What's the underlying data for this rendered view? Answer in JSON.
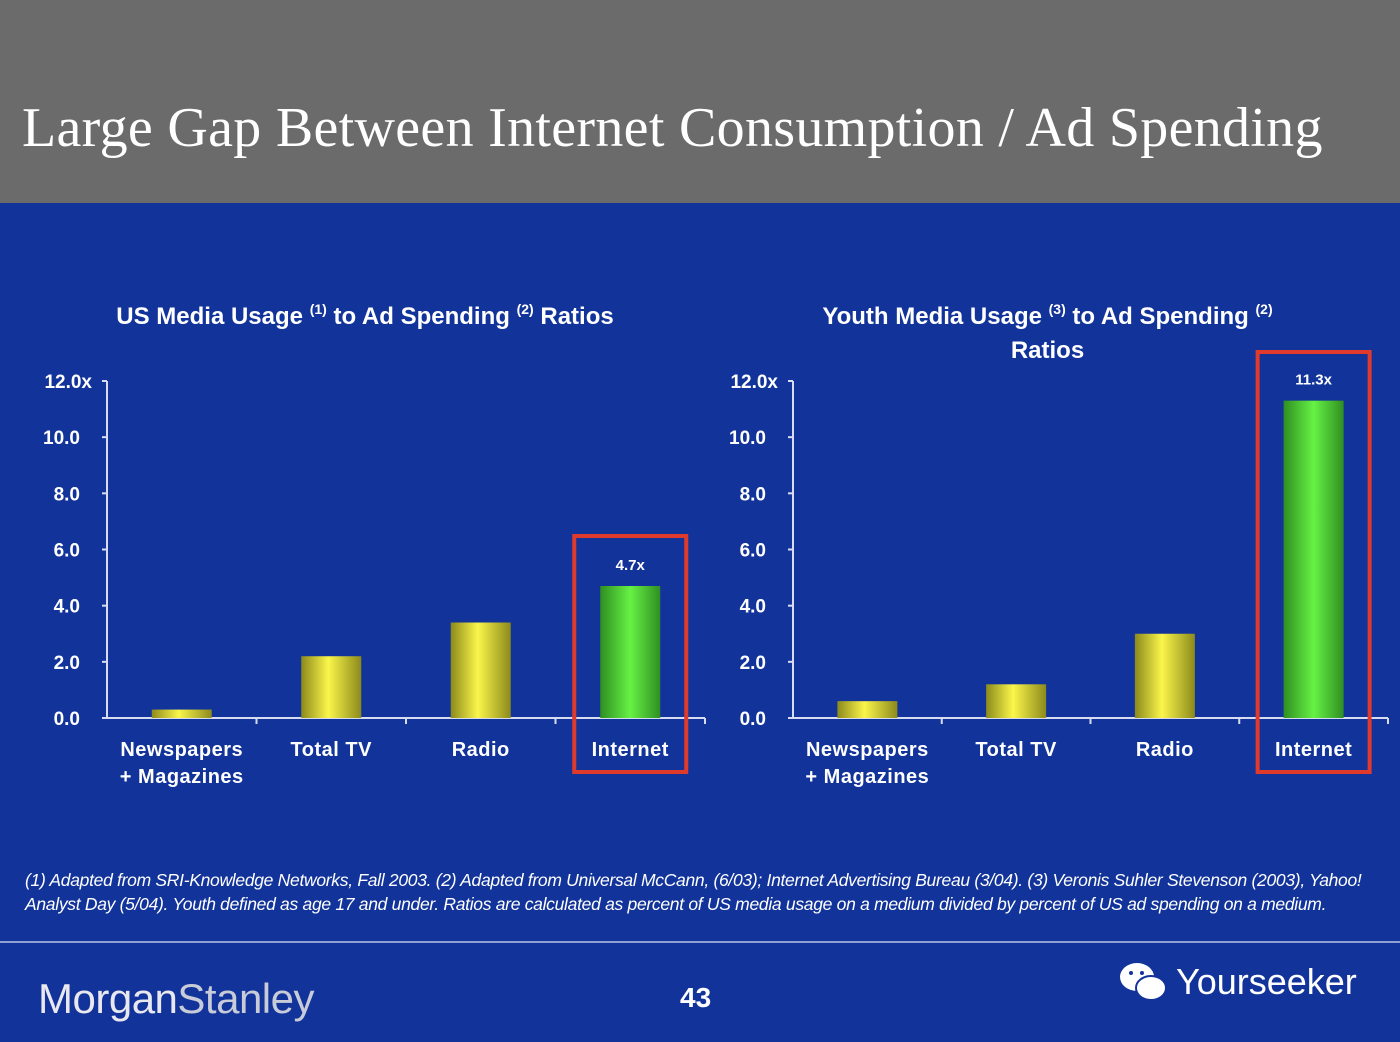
{
  "title": "Large Gap Between Internet Consumption / Ad Spending",
  "chart_data": [
    {
      "type": "bar",
      "title_parts": [
        "US Media Usage ",
        "(1)",
        " to Ad Spending ",
        "(2)",
        " Ratios"
      ],
      "categories": [
        [
          "Newspapers",
          "+ Magazines"
        ],
        [
          "Total TV"
        ],
        [
          "Radio"
        ],
        [
          "Internet"
        ]
      ],
      "values": [
        0.3,
        2.2,
        3.4,
        4.7
      ],
      "data_labels": [
        "",
        "",
        "",
        "4.7x"
      ],
      "highlight": "Internet",
      "ylim": [
        0,
        12
      ],
      "yticks": [
        "0.0",
        "2.0",
        "4.0",
        "6.0",
        "8.0",
        "10.0",
        "12.0x"
      ],
      "colors": {
        "default": "#e8e23a",
        "highlight": "#55dd33",
        "box": "#e03a2c"
      }
    },
    {
      "type": "bar",
      "title_parts": [
        "Youth Media Usage ",
        "(3)",
        " to Ad Spending ",
        "(2)",
        "Ratios"
      ],
      "categories": [
        [
          "Newspapers",
          "+ Magazines"
        ],
        [
          "Total TV"
        ],
        [
          "Radio"
        ],
        [
          "Internet"
        ]
      ],
      "values": [
        0.6,
        1.2,
        3.0,
        11.3
      ],
      "data_labels": [
        "",
        "",
        "",
        "11.3x"
      ],
      "highlight": "Internet",
      "ylim": [
        0,
        12
      ],
      "yticks": [
        "0.0",
        "2.0",
        "4.0",
        "6.0",
        "8.0",
        "10.0",
        "12.0x"
      ],
      "colors": {
        "default": "#e8e23a",
        "highlight": "#55dd33",
        "box": "#e03a2c"
      }
    }
  ],
  "footnote": "(1) Adapted from SRI-Knowledge Networks, Fall 2003.  (2) Adapted from Universal McCann, (6/03); Internet Advertising Bureau (3/04). (3) Veronis Suhler Stevenson (2003), Yahoo! Analyst Day (5/04).  Youth defined as age 17 and under.  Ratios are calculated as percent of US media usage on a medium divided by percent of US ad spending on a medium.",
  "footer": {
    "logo_a": "Morgan",
    "logo_b": "Stanley",
    "page": "43",
    "watermark": "Yourseeker",
    "watermark_icon": "wechat-icon"
  }
}
